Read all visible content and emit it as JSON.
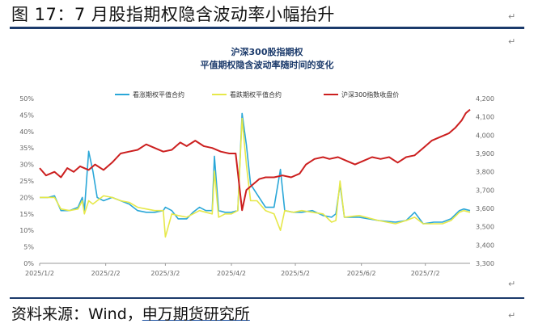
{
  "figure": {
    "title": "图 17：7 月股指期权隐含波动率小幅抬升",
    "source_prefix": "资料来源：",
    "source_wind": "Wind，",
    "source_org": "申万期货研究所",
    "para_mark": "↵"
  },
  "chart_data": {
    "type": "line",
    "title": "沪深300股指期权",
    "subtitle": "平值期权隐含波动率随时间的变化",
    "x_ticks": [
      "2025/1/2",
      "2025/2/2",
      "2025/3/2",
      "2025/4/2",
      "2025/5/2",
      "2025/6/2",
      "2025/7/2"
    ],
    "x_range": [
      "2025-01-02",
      "2025-07-23"
    ],
    "y_left": {
      "ticks": [
        "0%",
        "5%",
        "10%",
        "15%",
        "20%",
        "25%",
        "30%",
        "35%",
        "40%",
        "45%",
        "50%"
      ],
      "range": [
        0,
        50
      ]
    },
    "y_right": {
      "ticks": [
        "3,300",
        "3,400",
        "3,500",
        "3,600",
        "3,700",
        "3,800",
        "3,900",
        "4,000",
        "4,100",
        "4,200"
      ],
      "range": [
        3300,
        4200
      ]
    },
    "grid": false,
    "legend_position": "top",
    "series": [
      {
        "name": "看涨期权平值合约",
        "axis": "left",
        "color": "#2aa7d8",
        "points": [
          [
            "2025-01-02",
            20
          ],
          [
            "2025-01-06",
            20
          ],
          [
            "2025-01-09",
            20.5
          ],
          [
            "2025-01-12",
            16
          ],
          [
            "2025-01-16",
            16
          ],
          [
            "2025-01-20",
            17
          ],
          [
            "2025-01-22",
            20
          ],
          [
            "2025-01-23",
            16
          ],
          [
            "2025-01-25",
            34
          ],
          [
            "2025-01-27",
            28
          ],
          [
            "2025-01-29",
            20
          ],
          [
            "2025-02-01",
            19
          ],
          [
            "2025-02-05",
            20
          ],
          [
            "2025-02-09",
            19
          ],
          [
            "2025-02-13",
            18
          ],
          [
            "2025-02-17",
            16
          ],
          [
            "2025-02-21",
            15.5
          ],
          [
            "2025-02-25",
            15.5
          ],
          [
            "2025-03-01",
            16
          ],
          [
            "2025-03-02",
            17
          ],
          [
            "2025-03-05",
            16
          ],
          [
            "2025-03-08",
            13.5
          ],
          [
            "2025-03-12",
            13.5
          ],
          [
            "2025-03-15",
            15.5
          ],
          [
            "2025-03-18",
            17
          ],
          [
            "2025-03-21",
            16
          ],
          [
            "2025-03-24",
            16
          ],
          [
            "2025-03-25",
            32.5
          ],
          [
            "2025-03-27",
            16
          ],
          [
            "2025-03-30",
            15.5
          ],
          [
            "2025-04-02",
            15.5
          ],
          [
            "2025-04-05",
            16
          ],
          [
            "2025-04-07",
            45.5
          ],
          [
            "2025-04-09",
            36
          ],
          [
            "2025-04-11",
            24
          ],
          [
            "2025-04-14",
            21
          ],
          [
            "2025-04-18",
            17
          ],
          [
            "2025-04-22",
            17
          ],
          [
            "2025-04-25",
            28.5
          ],
          [
            "2025-04-27",
            16
          ],
          [
            "2025-05-01",
            15.5
          ],
          [
            "2025-05-05",
            15.5
          ],
          [
            "2025-05-10",
            16
          ],
          [
            "2025-05-15",
            14.5
          ],
          [
            "2025-05-19",
            14
          ],
          [
            "2025-05-21",
            15
          ],
          [
            "2025-05-23",
            24
          ],
          [
            "2025-05-25",
            14
          ],
          [
            "2025-06-01",
            14
          ],
          [
            "2025-06-10",
            13
          ],
          [
            "2025-06-18",
            12.5
          ],
          [
            "2025-06-23",
            13
          ],
          [
            "2025-06-27",
            15.5
          ],
          [
            "2025-07-01",
            12
          ],
          [
            "2025-07-06",
            12.5
          ],
          [
            "2025-07-10",
            12.5
          ],
          [
            "2025-07-14",
            13.5
          ],
          [
            "2025-07-18",
            16
          ],
          [
            "2025-07-20",
            16.5
          ],
          [
            "2025-07-23",
            16
          ]
        ]
      },
      {
        "name": "看跌期权平值合约",
        "axis": "left",
        "color": "#e6e84a",
        "points": [
          [
            "2025-01-02",
            20
          ],
          [
            "2025-01-06",
            20
          ],
          [
            "2025-01-09",
            20
          ],
          [
            "2025-01-12",
            16.5
          ],
          [
            "2025-01-16",
            16
          ],
          [
            "2025-01-20",
            16.5
          ],
          [
            "2025-01-22",
            19
          ],
          [
            "2025-01-23",
            15
          ],
          [
            "2025-01-25",
            19
          ],
          [
            "2025-01-27",
            18
          ],
          [
            "2025-01-29",
            19
          ],
          [
            "2025-02-01",
            20.5
          ],
          [
            "2025-02-05",
            20
          ],
          [
            "2025-02-09",
            19
          ],
          [
            "2025-02-13",
            18.5
          ],
          [
            "2025-02-17",
            17
          ],
          [
            "2025-02-21",
            16.5
          ],
          [
            "2025-02-25",
            16
          ],
          [
            "2025-03-01",
            16
          ],
          [
            "2025-03-02",
            8
          ],
          [
            "2025-03-05",
            15
          ],
          [
            "2025-03-08",
            14.5
          ],
          [
            "2025-03-12",
            14
          ],
          [
            "2025-03-15",
            15
          ],
          [
            "2025-03-18",
            16
          ],
          [
            "2025-03-21",
            15.5
          ],
          [
            "2025-03-24",
            15
          ],
          [
            "2025-03-25",
            28
          ],
          [
            "2025-03-27",
            14
          ],
          [
            "2025-03-30",
            15
          ],
          [
            "2025-04-02",
            15
          ],
          [
            "2025-04-05",
            16
          ],
          [
            "2025-04-07",
            44
          ],
          [
            "2025-04-09",
            30
          ],
          [
            "2025-04-11",
            19
          ],
          [
            "2025-04-14",
            19
          ],
          [
            "2025-04-18",
            16
          ],
          [
            "2025-04-22",
            15
          ],
          [
            "2025-04-25",
            10
          ],
          [
            "2025-04-27",
            16
          ],
          [
            "2025-05-01",
            15.5
          ],
          [
            "2025-05-05",
            16
          ],
          [
            "2025-05-10",
            15.5
          ],
          [
            "2025-05-15",
            15
          ],
          [
            "2025-05-19",
            12.5
          ],
          [
            "2025-05-21",
            13
          ],
          [
            "2025-05-23",
            25
          ],
          [
            "2025-05-25",
            14
          ],
          [
            "2025-06-01",
            14.5
          ],
          [
            "2025-06-10",
            13
          ],
          [
            "2025-06-18",
            12
          ],
          [
            "2025-06-23",
            13
          ],
          [
            "2025-06-27",
            14
          ],
          [
            "2025-07-01",
            12
          ],
          [
            "2025-07-06",
            12
          ],
          [
            "2025-07-10",
            12
          ],
          [
            "2025-07-14",
            13
          ],
          [
            "2025-07-18",
            15.5
          ],
          [
            "2025-07-20",
            16
          ],
          [
            "2025-07-23",
            15.5
          ]
        ]
      },
      {
        "name": "沪深300指数收盘价",
        "axis": "right",
        "color": "#cc1f1f",
        "points": [
          [
            "2025-01-02",
            3820
          ],
          [
            "2025-01-05",
            3780
          ],
          [
            "2025-01-09",
            3800
          ],
          [
            "2025-01-12",
            3770
          ],
          [
            "2025-01-15",
            3820
          ],
          [
            "2025-01-18",
            3800
          ],
          [
            "2025-01-21",
            3830
          ],
          [
            "2025-01-25",
            3810
          ],
          [
            "2025-01-28",
            3840
          ],
          [
            "2025-02-01",
            3810
          ],
          [
            "2025-02-05",
            3850
          ],
          [
            "2025-02-09",
            3900
          ],
          [
            "2025-02-13",
            3910
          ],
          [
            "2025-02-17",
            3920
          ],
          [
            "2025-02-21",
            3950
          ],
          [
            "2025-02-25",
            3930
          ],
          [
            "2025-03-01",
            3910
          ],
          [
            "2025-03-05",
            3920
          ],
          [
            "2025-03-09",
            3960
          ],
          [
            "2025-03-12",
            3940
          ],
          [
            "2025-03-16",
            3970
          ],
          [
            "2025-03-20",
            3940
          ],
          [
            "2025-03-24",
            3930
          ],
          [
            "2025-03-28",
            3910
          ],
          [
            "2025-04-01",
            3900
          ],
          [
            "2025-04-04",
            3900
          ],
          [
            "2025-04-07",
            3590
          ],
          [
            "2025-04-09",
            3700
          ],
          [
            "2025-04-12",
            3730
          ],
          [
            "2025-04-15",
            3760
          ],
          [
            "2025-04-18",
            3770
          ],
          [
            "2025-04-22",
            3770
          ],
          [
            "2025-04-26",
            3780
          ],
          [
            "2025-04-30",
            3770
          ],
          [
            "2025-05-04",
            3790
          ],
          [
            "2025-05-07",
            3840
          ],
          [
            "2025-05-11",
            3870
          ],
          [
            "2025-05-15",
            3880
          ],
          [
            "2025-05-18",
            3870
          ],
          [
            "2025-05-22",
            3880
          ],
          [
            "2025-05-26",
            3860
          ],
          [
            "2025-05-30",
            3840
          ],
          [
            "2025-06-03",
            3860
          ],
          [
            "2025-06-07",
            3880
          ],
          [
            "2025-06-11",
            3870
          ],
          [
            "2025-06-15",
            3880
          ],
          [
            "2025-06-19",
            3850
          ],
          [
            "2025-06-23",
            3880
          ],
          [
            "2025-06-27",
            3890
          ],
          [
            "2025-07-01",
            3930
          ],
          [
            "2025-07-05",
            3970
          ],
          [
            "2025-07-09",
            3990
          ],
          [
            "2025-07-13",
            4010
          ],
          [
            "2025-07-16",
            4040
          ],
          [
            "2025-07-19",
            4080
          ],
          [
            "2025-07-21",
            4120
          ],
          [
            "2025-07-23",
            4140
          ]
        ]
      }
    ]
  }
}
